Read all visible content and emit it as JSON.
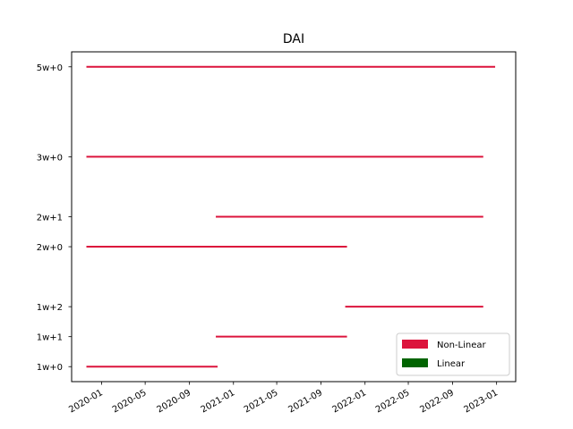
{
  "chart_data": {
    "type": "bar",
    "orientation": "horizontal-range",
    "title": "DAI",
    "xlabel": "",
    "ylabel": "",
    "x_axis_type": "date",
    "xlim": [
      "2019-10-10",
      "2023-02-23"
    ],
    "ylim": [
      -0.5,
      10.5
    ],
    "x_ticks": [
      "2020-01",
      "2020-05",
      "2020-09",
      "2021-01",
      "2021-05",
      "2021-09",
      "2022-01",
      "2022-05",
      "2022-09",
      "2023-01"
    ],
    "y_ticks": [
      {
        "value": 0,
        "label": "1w+0"
      },
      {
        "value": 1,
        "label": "1w+1"
      },
      {
        "value": 2,
        "label": "1w+2"
      },
      {
        "value": 4,
        "label": "2w+0"
      },
      {
        "value": 5,
        "label": "2w+1"
      },
      {
        "value": 7,
        "label": "3w+0"
      },
      {
        "value": 10,
        "label": "5w+0"
      }
    ],
    "series": [
      {
        "name": "Non-Linear",
        "color": "#dc143c",
        "segments": [
          {
            "label": "1w+0",
            "start": "2019-11-20",
            "end": "2020-11-18"
          },
          {
            "label": "1w+1",
            "start": "2020-11-13",
            "end": "2021-11-12"
          },
          {
            "label": "1w+2",
            "start": "2021-11-07",
            "end": "2022-11-25"
          },
          {
            "label": "2w+0",
            "start": "2019-11-20",
            "end": "2021-11-12"
          },
          {
            "label": "2w+1",
            "start": "2020-11-13",
            "end": "2022-11-25"
          },
          {
            "label": "3w+0",
            "start": "2019-11-20",
            "end": "2022-11-25"
          },
          {
            "label": "5w+0",
            "start": "2019-11-20",
            "end": "2022-12-28"
          }
        ]
      },
      {
        "name": "Linear",
        "color": "#006400",
        "segments": []
      }
    ],
    "legend": {
      "placement": "lower-right",
      "entries": [
        {
          "label": "Non-Linear",
          "color": "#dc143c"
        },
        {
          "label": "Linear",
          "color": "#006400"
        }
      ]
    },
    "grid": false
  }
}
